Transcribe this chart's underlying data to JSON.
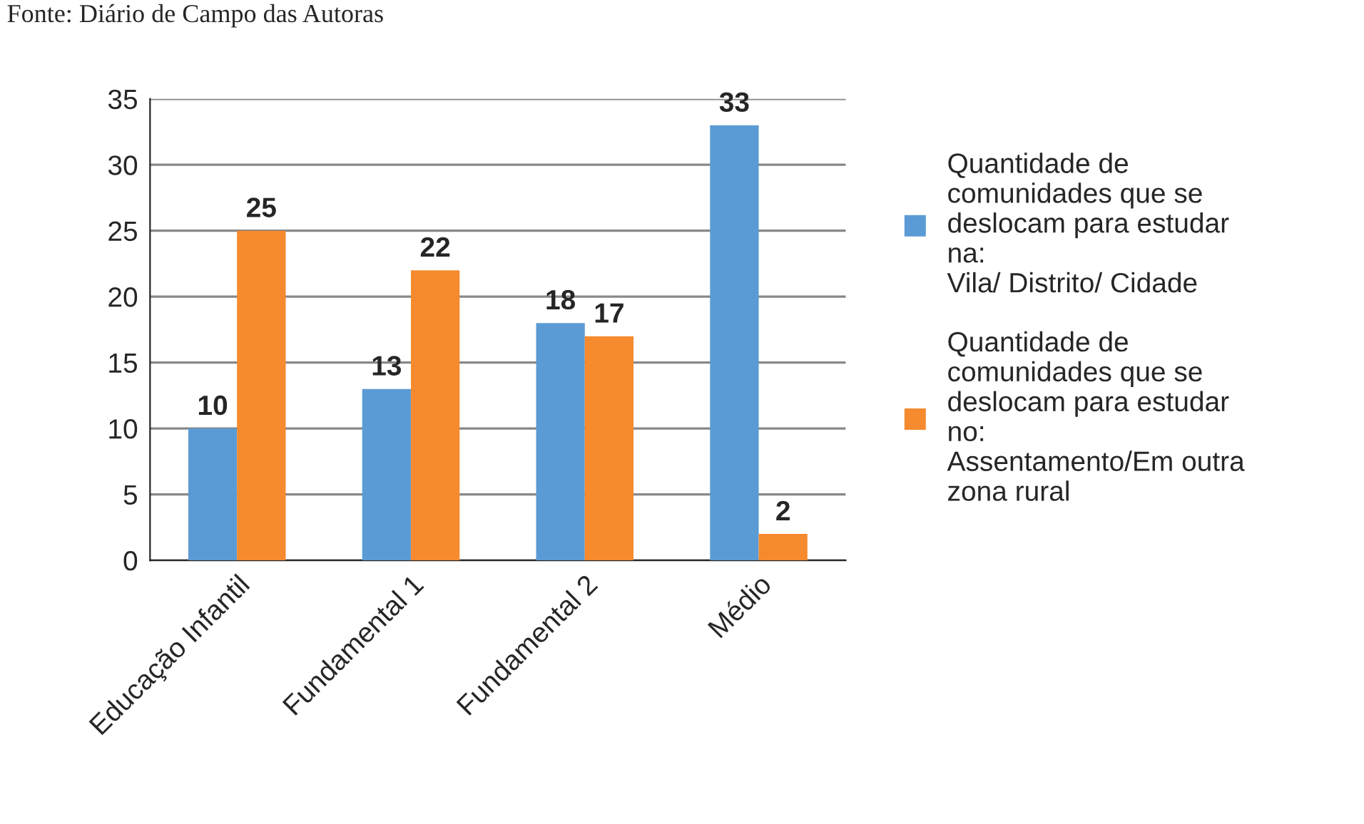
{
  "chart_data": {
    "type": "bar",
    "categories": [
      "Educação Infantil",
      "Fundamental 1",
      "Fundamental 2",
      "Médio"
    ],
    "series": [
      {
        "name": "Quantidade de\ncomunidades que se\ndeslocam para estudar\nna:\nVila/ Distrito/ Cidade",
        "color": "#5b9bd5",
        "values": [
          10,
          13,
          18,
          33
        ]
      },
      {
        "name": "Quantidade de\ncomunidades que se\ndeslocam para estudar\nno:\nAssentamento/Em outra\nzona rural",
        "color": "#f58a2e",
        "values": [
          25,
          22,
          17,
          2
        ]
      }
    ],
    "ylim": [
      0,
      35
    ],
    "yticks": [
      0,
      5,
      10,
      15,
      20,
      25,
      30,
      35
    ],
    "grid": "y",
    "legend": "right",
    "data_labels": true,
    "annotations": [
      "Fonte: Diário de Campo das Autoras"
    ]
  }
}
